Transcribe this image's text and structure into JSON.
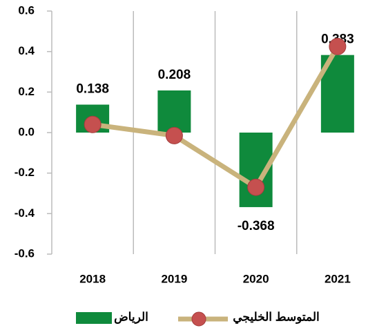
{
  "chart_data": {
    "type": "bar",
    "categories": [
      "2018",
      "2019",
      "2020",
      "2021"
    ],
    "series": [
      {
        "name": "الرياض",
        "type": "bar",
        "color": "#0f8a3c",
        "values": [
          0.138,
          0.208,
          -0.368,
          0.383
        ]
      },
      {
        "name": "المتوسط الخليجي",
        "type": "line",
        "color": "#c9b37c",
        "marker_color": "#c5504f",
        "values": [
          0.04,
          -0.015,
          -0.27,
          0.425
        ]
      }
    ],
    "ylim": [
      -0.6,
      0.6
    ],
    "yticks": [
      -0.6,
      -0.4,
      -0.2,
      {
        "value": 0,
        "label": "0.0"
      },
      0.2,
      0.4,
      0.6
    ],
    "grid": "x",
    "legend": "bottom"
  }
}
